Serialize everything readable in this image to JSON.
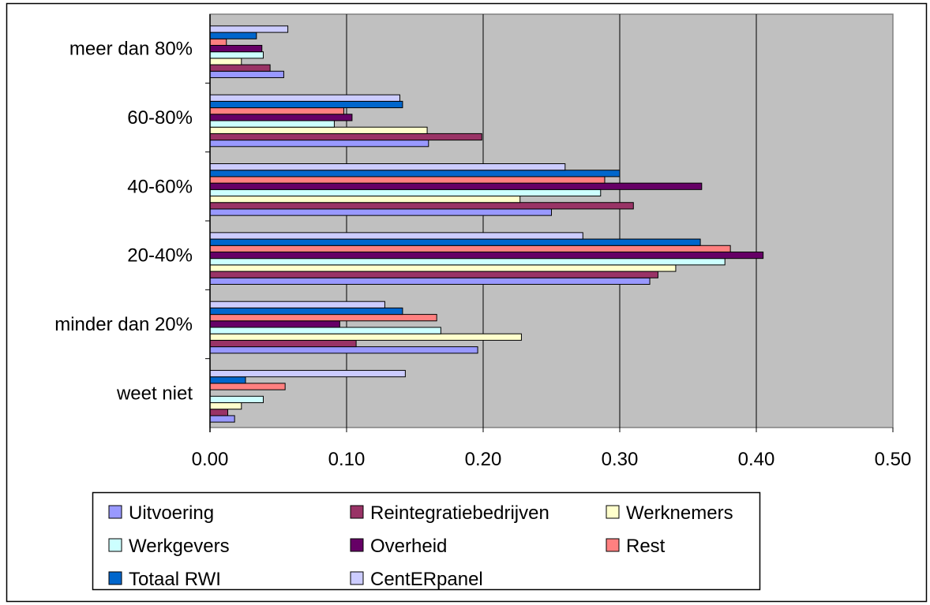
{
  "chart_data": {
    "type": "bar",
    "orientation": "horizontal",
    "title": "",
    "xlabel": "",
    "ylabel": "",
    "xlim": [
      0,
      0.5
    ],
    "x_ticks": [
      "0.00",
      "0.10",
      "0.20",
      "0.30",
      "0.40",
      "0.50"
    ],
    "grid": "vertical",
    "plot_background": "#C0C0C0",
    "legend_position": "bottom",
    "categories": [
      "weet niet",
      "minder dan 20%",
      "20-40%",
      "40-60%",
      "60-80%",
      "meer dan 80%"
    ],
    "series": [
      {
        "name": "Uitvoering",
        "color": "#9999FF",
        "values": [
          0.018,
          0.196,
          0.322,
          0.25,
          0.16,
          0.054
        ]
      },
      {
        "name": "Reintegratiebedrijven",
        "color": "#993366",
        "values": [
          0.013,
          0.107,
          0.328,
          0.31,
          0.199,
          0.044
        ]
      },
      {
        "name": "Werknemers",
        "color": "#FFFFCC",
        "values": [
          0.023,
          0.228,
          0.341,
          0.227,
          0.159,
          0.023
        ]
      },
      {
        "name": "Werkgevers",
        "color": "#CCFFFF",
        "values": [
          0.039,
          0.169,
          0.377,
          0.286,
          0.091,
          0.039
        ]
      },
      {
        "name": "Overheid",
        "color": "#660066",
        "values": [
          0.0,
          0.095,
          0.405,
          0.36,
          0.104,
          0.038
        ]
      },
      {
        "name": "Rest",
        "color": "#FF8080",
        "values": [
          0.055,
          0.166,
          0.381,
          0.289,
          0.098,
          0.012
        ]
      },
      {
        "name": "Totaal RWI",
        "color": "#0066CC",
        "values": [
          0.026,
          0.141,
          0.359,
          0.3,
          0.141,
          0.034
        ]
      },
      {
        "name": "CentERpanel",
        "color": "#CCCCFF",
        "values": [
          0.143,
          0.128,
          0.273,
          0.26,
          0.139,
          0.057
        ]
      }
    ]
  }
}
